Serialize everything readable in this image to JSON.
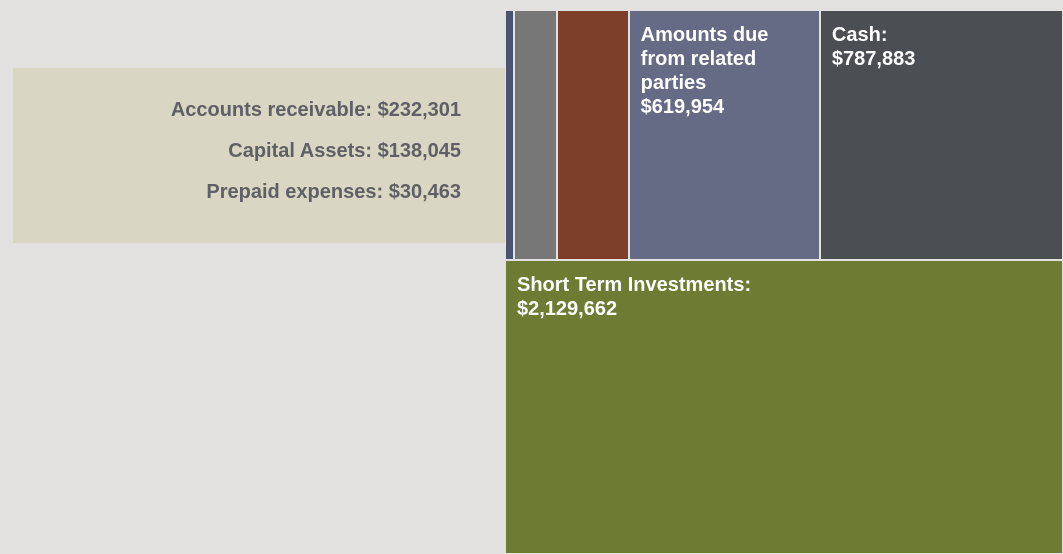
{
  "chart_data": {
    "type": "treemap",
    "categories": [
      "Short Term Investments:",
      "Cash:",
      "Amounts due from related parties",
      "Accounts receivable:",
      "Capital Assets:",
      "Prepaid expenses:"
    ],
    "values": [
      2129662,
      787883,
      619954,
      232301,
      138045,
      30463
    ],
    "value_labels": [
      "$2,129,662",
      "$787,883",
      "$619,954",
      "$232,301",
      "$138,045",
      "$30,463"
    ],
    "colors": [
      "#6e7b33",
      "#4b4e53",
      "#656b85",
      "#7d3f2a",
      "#777777",
      "#4a5470"
    ]
  }
}
